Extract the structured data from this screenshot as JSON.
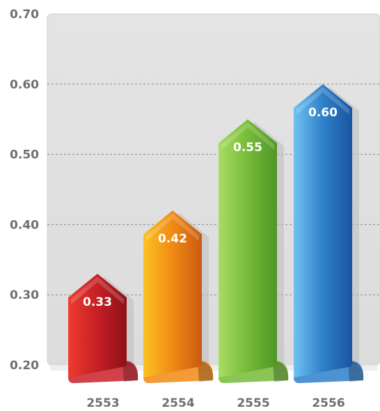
{
  "chart_data": {
    "type": "bar",
    "title": "",
    "xlabel": "",
    "ylabel": "",
    "categories": [
      "2553",
      "2554",
      "2555",
      "2556"
    ],
    "values": [
      0.33,
      0.42,
      0.55,
      0.6
    ],
    "value_labels": [
      "0.33",
      "0.42",
      "0.55",
      "0.60"
    ],
    "y_ticks": [
      "0.20",
      "0.30",
      "0.40",
      "0.50",
      "0.60",
      "0.70"
    ],
    "ylim": [
      0.2,
      0.7
    ],
    "grid": true,
    "legend": "none",
    "colors": [
      "#c8202a",
      "#f08a14",
      "#76bb38",
      "#2f80c9"
    ]
  }
}
